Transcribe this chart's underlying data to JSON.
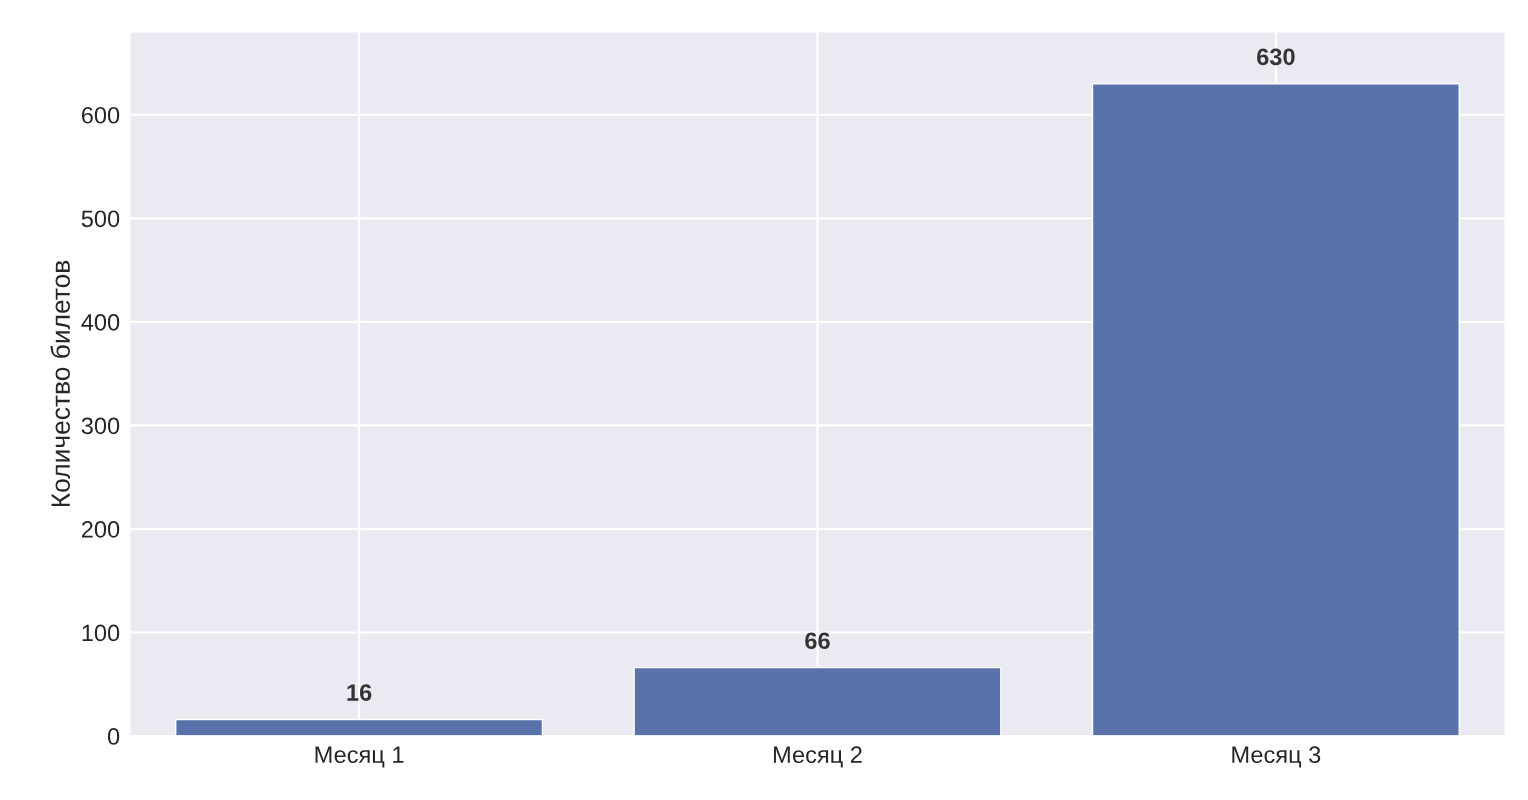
{
  "chart_data": {
    "type": "bar",
    "categories": [
      "Месяц 1",
      "Месяц 2",
      "Месяц 3"
    ],
    "values": [
      16,
      66,
      630
    ],
    "color": "#5a72aa",
    "ylabel": "Количество билетов",
    "ylim": [
      0,
      680
    ],
    "yticks": [
      0,
      100,
      200,
      300,
      400,
      500,
      600
    ],
    "grid": true,
    "data_labels": true
  }
}
